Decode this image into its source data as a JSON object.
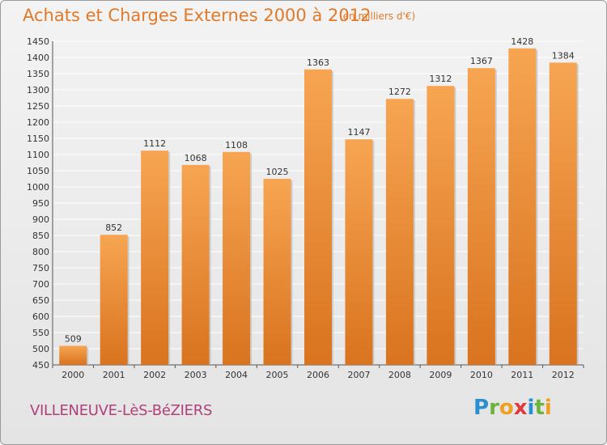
{
  "title": "Achats et Charges Externes 2000 à 2012",
  "subtitle": "(en milliers d'€)",
  "commune": "VILLENEUVE-LèS-BéZIERS",
  "logo": {
    "text": "Proxiti",
    "letters": [
      {
        "ch": "P",
        "color": "#2a8fd0"
      },
      {
        "ch": "r",
        "color": "#6cb33e"
      },
      {
        "ch": "o",
        "color": "#f0a020"
      },
      {
        "ch": "x",
        "color": "#e03a3a"
      },
      {
        "ch": "i",
        "color": "#2a8fd0"
      },
      {
        "ch": "t",
        "color": "#6cb33e"
      },
      {
        "ch": "i",
        "color": "#f0a020"
      }
    ]
  },
  "colors": {
    "accent": "#e07a2a",
    "bar_top": "#f7a552",
    "bar_bottom": "#d9731f",
    "commune": "#b0407a",
    "grid": "#ffffff"
  },
  "chart_data": {
    "type": "bar",
    "categories": [
      "2000",
      "2001",
      "2002",
      "2003",
      "2004",
      "2005",
      "2006",
      "2007",
      "2008",
      "2009",
      "2010",
      "2011",
      "2012"
    ],
    "values": [
      509,
      852,
      1112,
      1068,
      1108,
      1025,
      1363,
      1147,
      1272,
      1312,
      1367,
      1428,
      1384
    ],
    "ylim": [
      450,
      1450
    ],
    "ytick_step": 50,
    "grid": true
  }
}
